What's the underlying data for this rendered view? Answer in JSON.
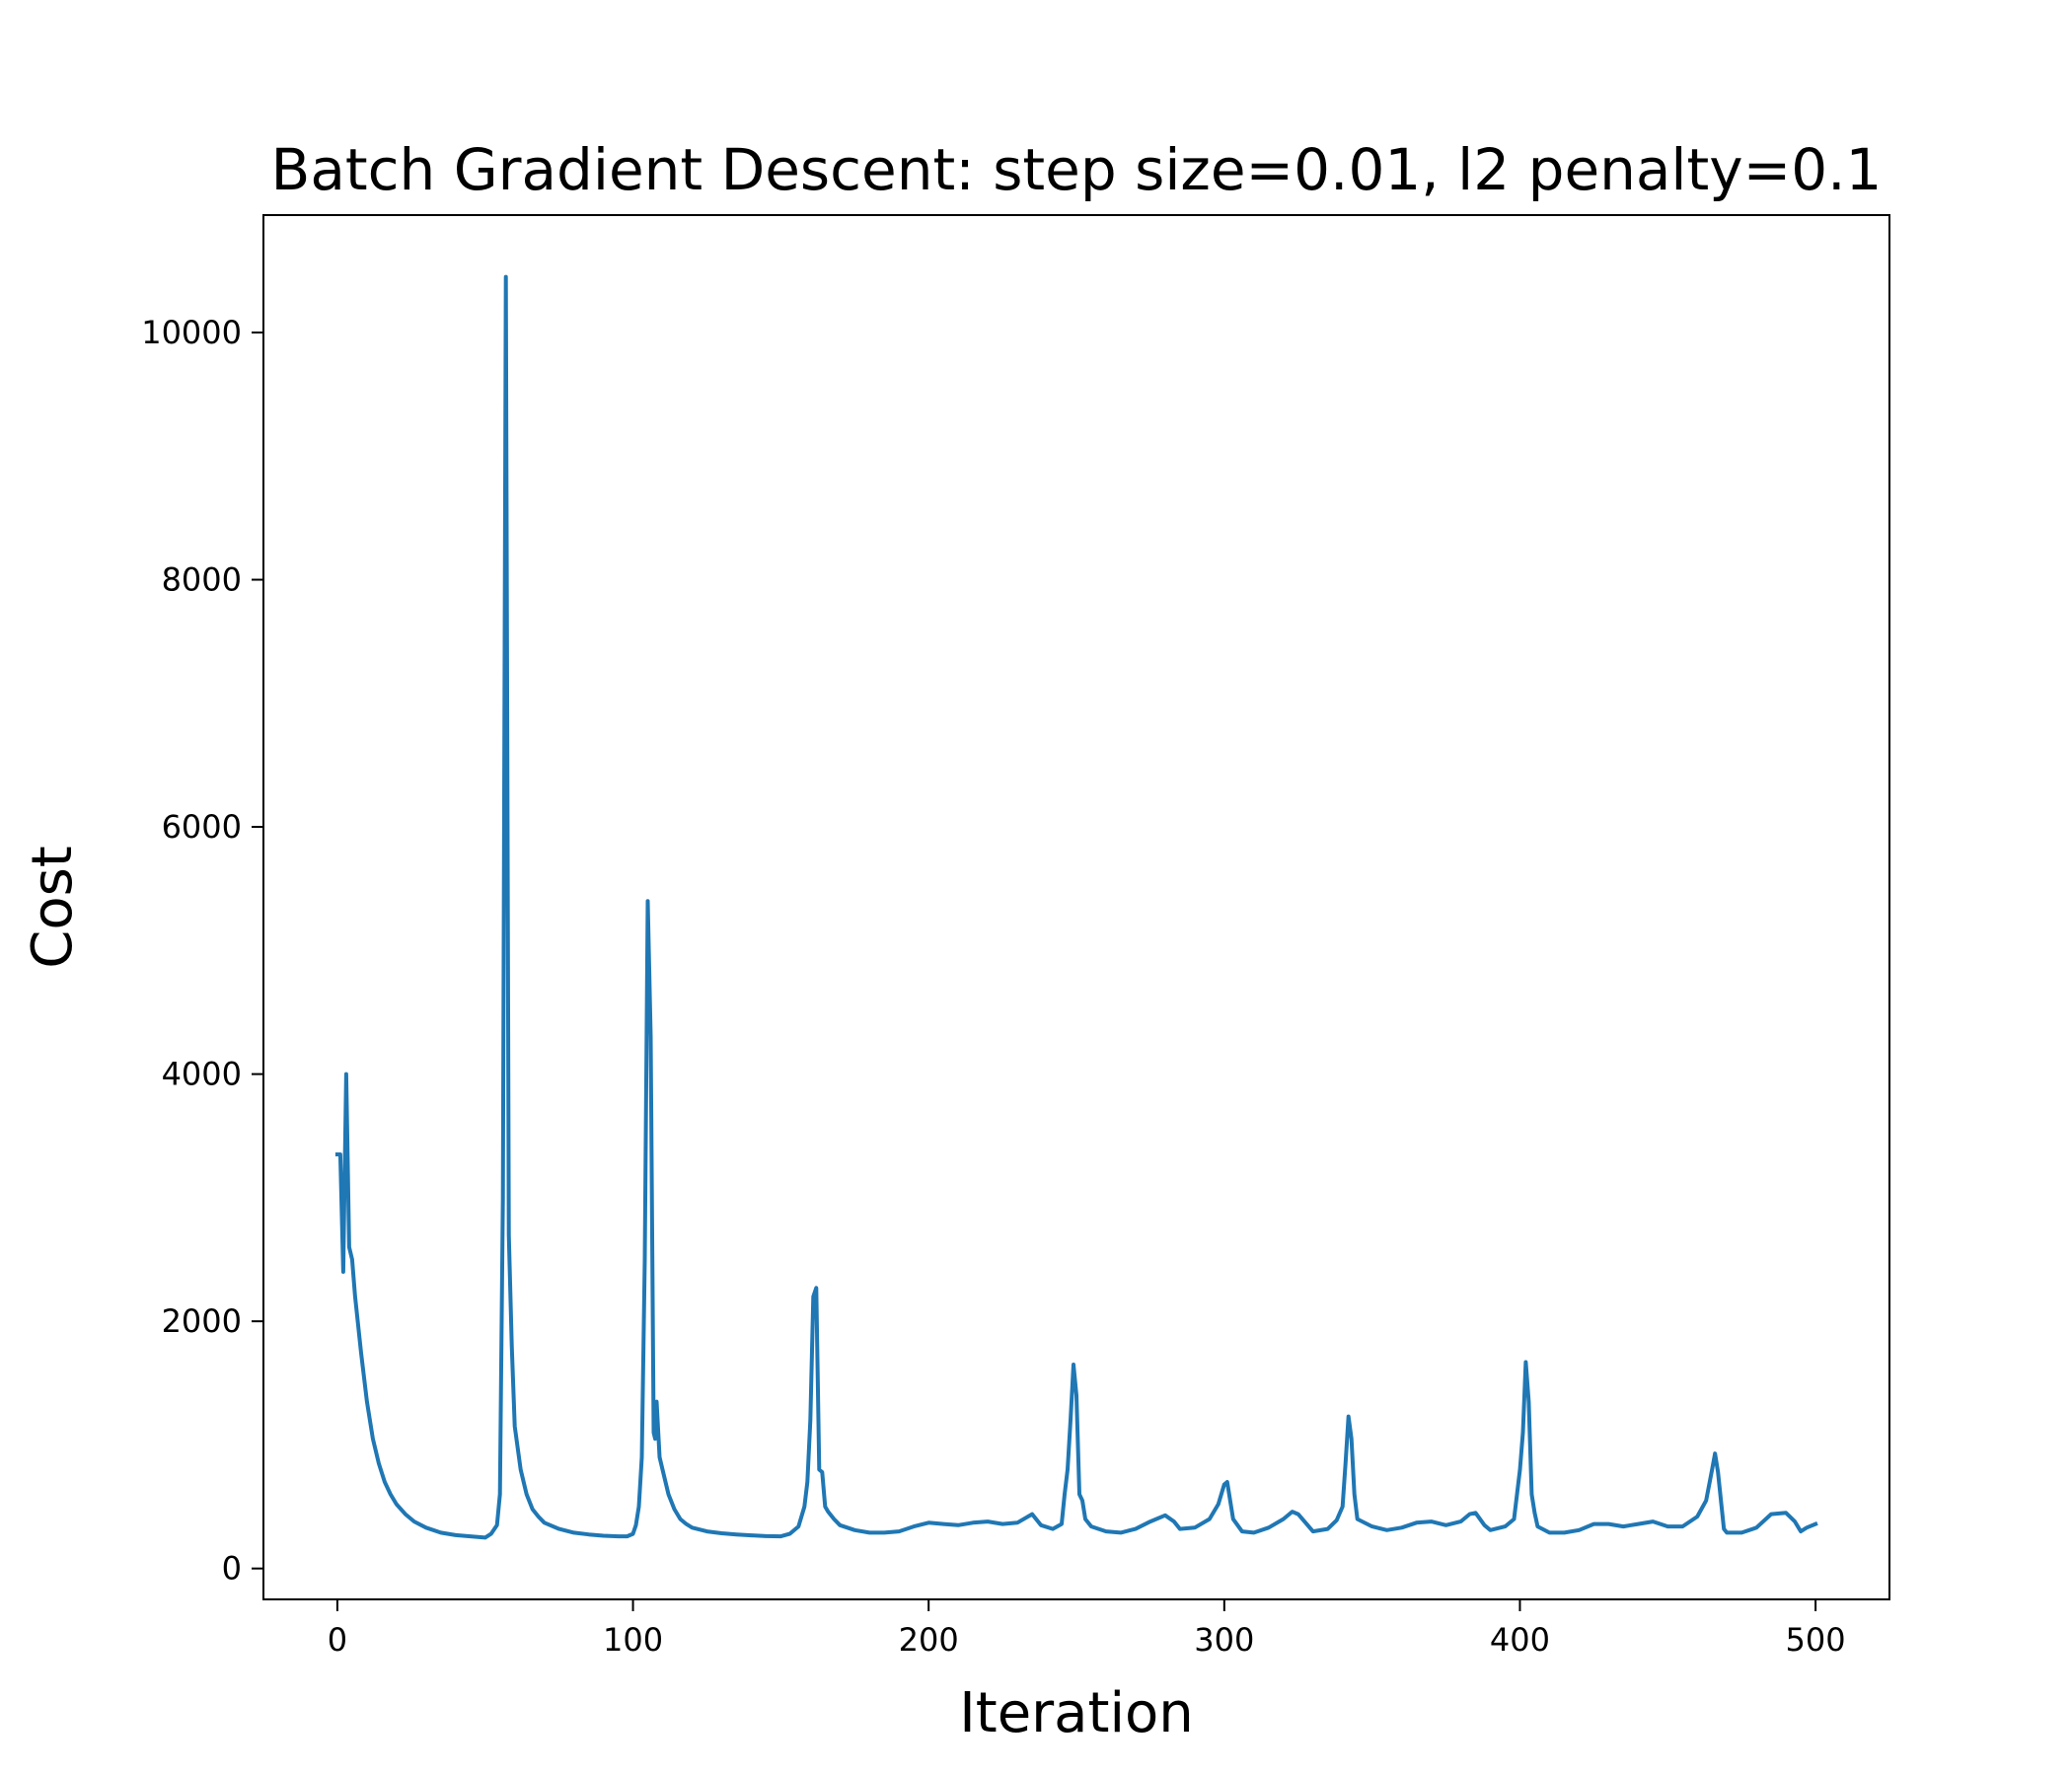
{
  "chart_data": {
    "type": "line",
    "title": "Batch Gradient Descent: step size=0.01, l2 penalty=0.1",
    "xlabel": "Iteration",
    "ylabel": "Cost",
    "xlim": [
      -25,
      525
    ],
    "ylim": [
      -250,
      10950
    ],
    "xticks": [
      0,
      100,
      200,
      300,
      400,
      500
    ],
    "yticks": [
      0,
      2000,
      4000,
      6000,
      8000,
      10000
    ],
    "grid": false,
    "series": [
      {
        "color": "#1f77b4",
        "x": [
          0,
          1,
          2,
          3,
          4,
          5,
          6,
          8,
          10,
          12,
          14,
          16,
          18,
          20,
          23,
          26,
          30,
          35,
          40,
          45,
          50,
          52,
          54,
          55,
          56,
          57,
          58,
          59,
          60,
          62,
          64,
          66,
          68,
          70,
          75,
          80,
          85,
          90,
          95,
          98,
          100,
          101,
          102,
          103,
          104,
          105,
          106,
          107,
          107.5,
          108,
          109,
          110,
          111,
          112,
          114,
          116,
          118,
          120,
          125,
          130,
          135,
          140,
          145,
          150,
          153,
          156,
          158,
          159,
          160,
          161,
          162,
          163,
          164,
          165,
          166,
          168,
          170,
          175,
          180,
          185,
          190,
          195,
          200,
          205,
          210,
          215,
          220,
          225,
          230,
          235,
          238,
          242,
          245,
          246,
          247,
          248,
          249,
          250,
          251,
          252,
          253,
          255,
          260,
          265,
          270,
          275,
          280,
          283,
          285,
          290,
          295,
          298,
          300,
          301,
          303,
          306,
          310,
          315,
          320,
          323,
          325,
          330,
          335,
          338,
          340,
          341,
          342,
          343,
          344,
          345,
          350,
          355,
          360,
          365,
          370,
          375,
          380,
          383,
          385,
          388,
          390,
          395,
          398,
          400,
          401,
          402,
          403,
          404,
          405,
          406,
          410,
          415,
          420,
          425,
          430,
          435,
          440,
          445,
          450,
          455,
          460,
          463,
          465,
          466,
          467,
          468,
          469,
          470,
          475,
          480,
          485,
          490,
          493,
          495,
          497,
          500
        ],
        "y": [
          3350,
          3350,
          2400,
          4000,
          2600,
          2500,
          2200,
          1750,
          1350,
          1050,
          850,
          700,
          600,
          520,
          440,
          380,
          330,
          290,
          270,
          260,
          250,
          280,
          350,
          600,
          3000,
          10450,
          2700,
          1800,
          1150,
          800,
          600,
          480,
          420,
          370,
          320,
          290,
          275,
          265,
          260,
          260,
          280,
          350,
          500,
          900,
          2500,
          5400,
          4300,
          1100,
          1050,
          1350,
          900,
          800,
          700,
          600,
          480,
          400,
          360,
          330,
          300,
          285,
          275,
          268,
          262,
          260,
          280,
          340,
          500,
          700,
          1200,
          2200,
          2270,
          800,
          780,
          500,
          460,
          400,
          350,
          310,
          290,
          290,
          300,
          340,
          370,
          360,
          350,
          370,
          380,
          360,
          370,
          440,
          350,
          320,
          360,
          600,
          800,
          1200,
          1650,
          1400,
          600,
          550,
          400,
          340,
          300,
          290,
          320,
          380,
          430,
          380,
          320,
          330,
          400,
          520,
          680,
          700,
          400,
          300,
          290,
          330,
          400,
          460,
          440,
          300,
          320,
          390,
          500,
          850,
          1230,
          1050,
          600,
          400,
          340,
          310,
          330,
          370,
          380,
          350,
          380,
          440,
          450,
          350,
          310,
          340,
          400,
          800,
          1100,
          1670,
          1350,
          600,
          450,
          340,
          290,
          290,
          310,
          360,
          360,
          340,
          360,
          380,
          340,
          340,
          420,
          550,
          800,
          930,
          780,
          550,
          320,
          290,
          290,
          330,
          440,
          450,
          380,
          300,
          330,
          360
        ]
      }
    ]
  }
}
